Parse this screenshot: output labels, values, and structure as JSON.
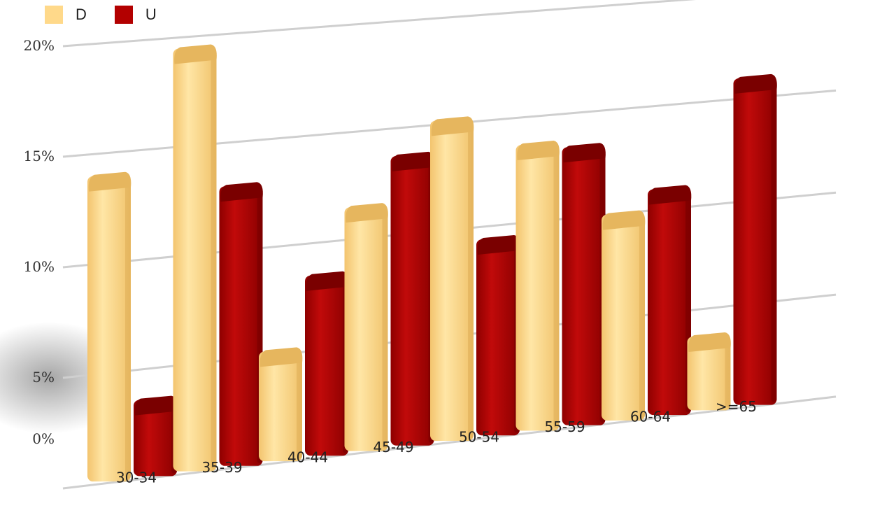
{
  "chart_data": {
    "type": "bar",
    "categories": [
      "30-34",
      "35-39",
      "40-44",
      "45-49",
      "50-54",
      "55-59",
      "60-64",
      ">=65"
    ],
    "series": [
      {
        "name": "D",
        "color": "#FFD98A",
        "values": [
          14,
          19.5,
          5.2,
          11.5,
          15.2,
          13.7,
          10,
          3.7
        ]
      },
      {
        "name": "U",
        "color": "#B30000",
        "values": [
          3.6,
          13,
          8.5,
          13.7,
          9.4,
          13.4,
          11,
          16
        ]
      }
    ],
    "yticks": [
      "0%",
      "5%",
      "10%",
      "15%",
      "20%"
    ],
    "ylim": [
      0,
      20
    ],
    "legend_position": "top-left",
    "grid": true
  }
}
